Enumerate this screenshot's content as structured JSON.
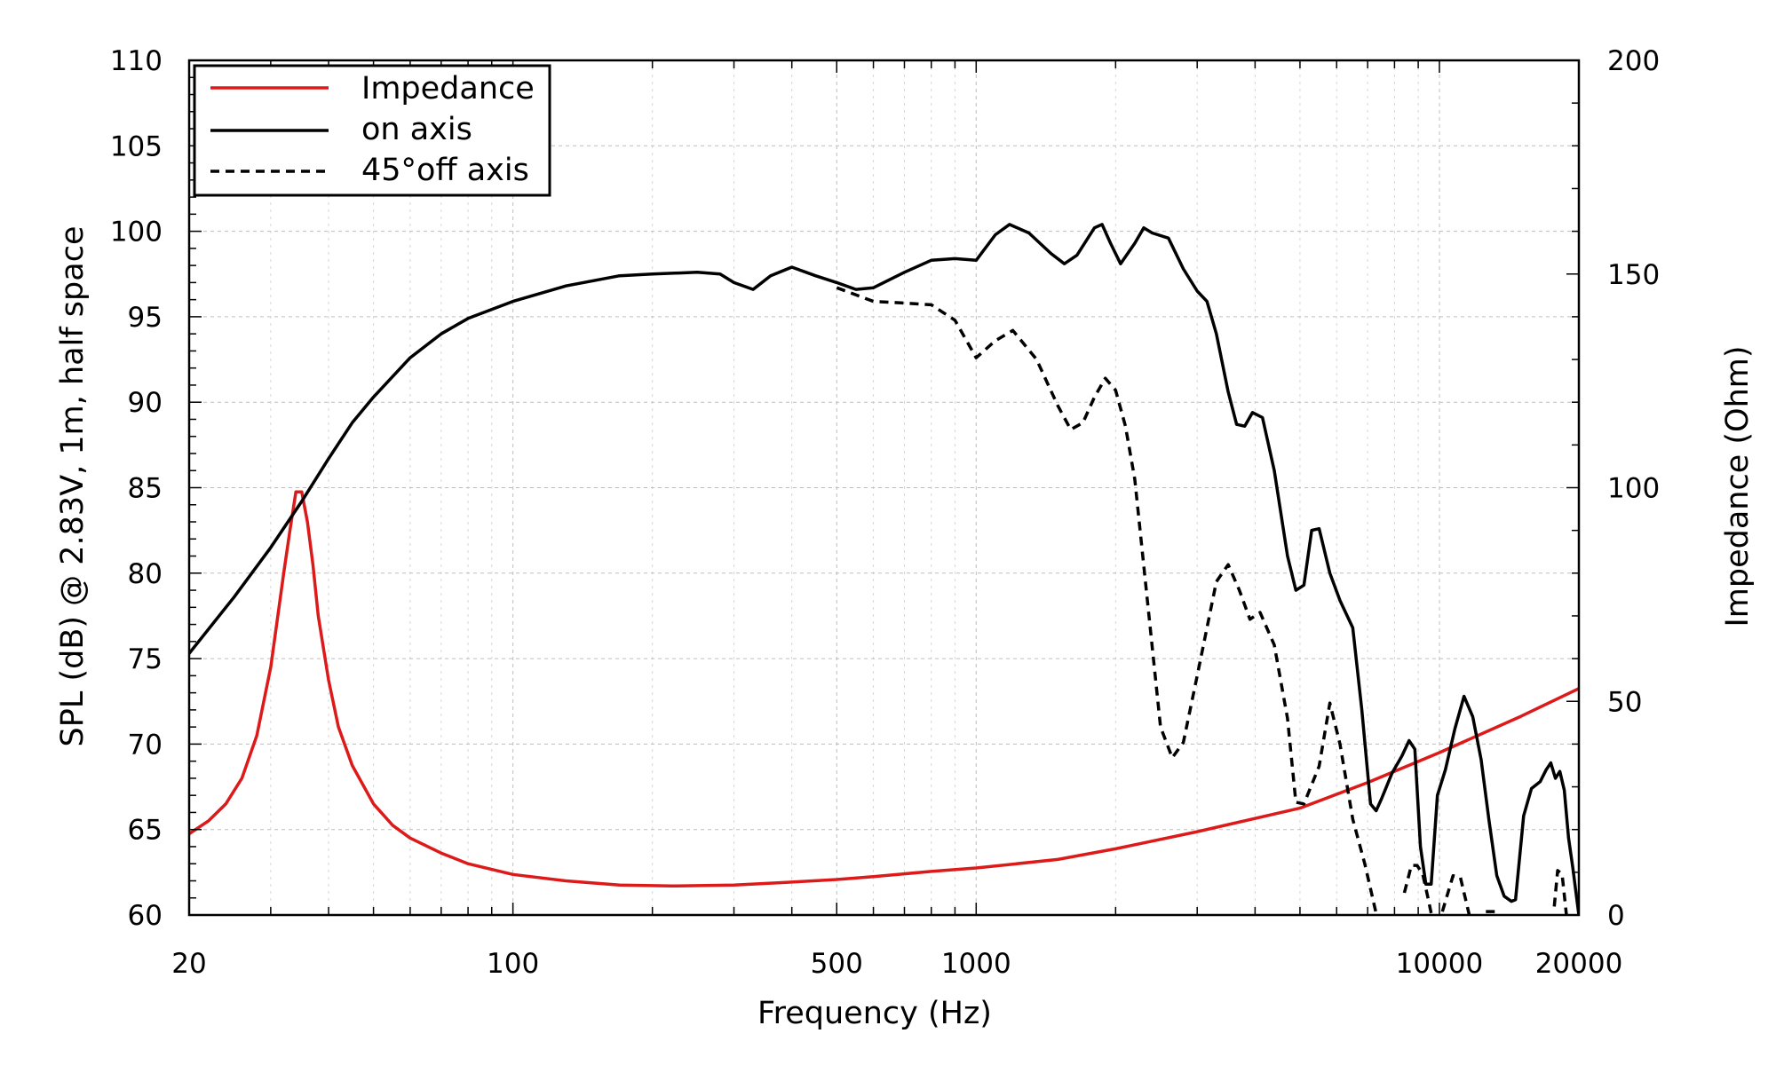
{
  "chart_data": {
    "type": "line",
    "title": "",
    "xlabel": "Frequency (Hz)",
    "ylabel_left": "SPL (dB) @ 2.83V, 1m, half space",
    "ylabel_right": "Impedance (Ohm)",
    "x_scale": "log",
    "xlim": [
      20,
      20000
    ],
    "ylim_left": [
      60,
      110
    ],
    "ylim_right": [
      0,
      200
    ],
    "x_ticks": [
      20,
      100,
      500,
      1000,
      10000,
      20000
    ],
    "x_tick_labels": [
      "20",
      "100",
      "500",
      "1000",
      "10000",
      "20000"
    ],
    "y_left_ticks": [
      60,
      65,
      70,
      75,
      80,
      85,
      90,
      95,
      100,
      105,
      110
    ],
    "y_left_tick_labels": [
      "60",
      "65",
      "70",
      "75",
      "80",
      "85",
      "90",
      "95",
      "100",
      "105",
      "110"
    ],
    "y_right_ticks": [
      0,
      50,
      100,
      150,
      200
    ],
    "y_right_tick_labels": [
      "0",
      "50",
      "100",
      "150",
      "200"
    ],
    "grid": true,
    "legend_position": "top-left",
    "series": [
      {
        "name": "Impedance",
        "axis": "right",
        "color": "#dd1a1a",
        "style": "solid",
        "points": [
          [
            20,
            19
          ],
          [
            22,
            22
          ],
          [
            24,
            26
          ],
          [
            26,
            32
          ],
          [
            28,
            42
          ],
          [
            30,
            58
          ],
          [
            32,
            80
          ],
          [
            33,
            90
          ],
          [
            34,
            99
          ],
          [
            35,
            99
          ],
          [
            36,
            92
          ],
          [
            37,
            82
          ],
          [
            38,
            70
          ],
          [
            40,
            55
          ],
          [
            42,
            44
          ],
          [
            45,
            35
          ],
          [
            50,
            26
          ],
          [
            55,
            21
          ],
          [
            60,
            18
          ],
          [
            70,
            14.5
          ],
          [
            80,
            12
          ],
          [
            100,
            9.5
          ],
          [
            130,
            8
          ],
          [
            170,
            7
          ],
          [
            220,
            6.8
          ],
          [
            300,
            7
          ],
          [
            400,
            7.7
          ],
          [
            500,
            8.3
          ],
          [
            600,
            9
          ],
          [
            800,
            10.2
          ],
          [
            1000,
            11
          ],
          [
            1500,
            13
          ],
          [
            2000,
            15.5
          ],
          [
            3000,
            19.5
          ],
          [
            5000,
            25
          ],
          [
            7000,
            31
          ],
          [
            10000,
            38
          ],
          [
            15000,
            46.5
          ],
          [
            20000,
            53
          ]
        ]
      },
      {
        "name": "on axis",
        "axis": "left",
        "color": "#000000",
        "style": "solid",
        "points": [
          [
            20,
            75.3
          ],
          [
            25,
            78.6
          ],
          [
            30,
            81.5
          ],
          [
            35,
            84.2
          ],
          [
            40,
            86.7
          ],
          [
            45,
            88.8
          ],
          [
            50,
            90.3
          ],
          [
            60,
            92.6
          ],
          [
            70,
            94.0
          ],
          [
            80,
            94.9
          ],
          [
            100,
            95.9
          ],
          [
            130,
            96.8
          ],
          [
            170,
            97.4
          ],
          [
            200,
            97.5
          ],
          [
            250,
            97.6
          ],
          [
            280,
            97.5
          ],
          [
            300,
            97.0
          ],
          [
            330,
            96.6
          ],
          [
            360,
            97.4
          ],
          [
            400,
            97.9
          ],
          [
            450,
            97.4
          ],
          [
            500,
            97.0
          ],
          [
            550,
            96.6
          ],
          [
            600,
            96.7
          ],
          [
            700,
            97.6
          ],
          [
            800,
            98.3
          ],
          [
            900,
            98.4
          ],
          [
            1000,
            98.3
          ],
          [
            1100,
            99.8
          ],
          [
            1180,
            100.4
          ],
          [
            1300,
            99.9
          ],
          [
            1450,
            98.7
          ],
          [
            1550,
            98.1
          ],
          [
            1650,
            98.6
          ],
          [
            1800,
            100.2
          ],
          [
            1870,
            100.4
          ],
          [
            1950,
            99.3
          ],
          [
            2050,
            98.1
          ],
          [
            2200,
            99.3
          ],
          [
            2300,
            100.2
          ],
          [
            2400,
            99.9
          ],
          [
            2600,
            99.6
          ],
          [
            2800,
            97.8
          ],
          [
            3000,
            96.5
          ],
          [
            3150,
            95.9
          ],
          [
            3300,
            94.0
          ],
          [
            3500,
            90.6
          ],
          [
            3650,
            88.7
          ],
          [
            3800,
            88.6
          ],
          [
            3950,
            89.4
          ],
          [
            4150,
            89.1
          ],
          [
            4400,
            86.0
          ],
          [
            4700,
            81.0
          ],
          [
            4900,
            79.0
          ],
          [
            5100,
            79.3
          ],
          [
            5300,
            82.5
          ],
          [
            5500,
            82.6
          ],
          [
            5800,
            80.0
          ],
          [
            6100,
            78.4
          ],
          [
            6500,
            76.8
          ],
          [
            6800,
            72.0
          ],
          [
            7100,
            66.5
          ],
          [
            7300,
            66.1
          ],
          [
            7500,
            66.8
          ],
          [
            7900,
            68.3
          ],
          [
            8300,
            69.3
          ],
          [
            8600,
            70.2
          ],
          [
            8850,
            69.7
          ],
          [
            9100,
            64.0
          ],
          [
            9350,
            61.8
          ],
          [
            9600,
            61.8
          ],
          [
            9900,
            67.0
          ],
          [
            10300,
            68.5
          ],
          [
            10800,
            70.9
          ],
          [
            11300,
            72.8
          ],
          [
            11800,
            71.6
          ],
          [
            12300,
            69.1
          ],
          [
            12800,
            65.5
          ],
          [
            13300,
            62.3
          ],
          [
            13800,
            61.1
          ],
          [
            14300,
            60.8
          ],
          [
            14600,
            60.9
          ],
          [
            15200,
            65.8
          ],
          [
            15800,
            67.4
          ],
          [
            16500,
            67.8
          ],
          [
            17000,
            68.5
          ],
          [
            17400,
            68.9
          ],
          [
            17800,
            68.0
          ],
          [
            18200,
            68.4
          ],
          [
            18600,
            67.3
          ],
          [
            19000,
            64.5
          ],
          [
            19400,
            62.8
          ],
          [
            20000,
            60.0
          ]
        ]
      },
      {
        "name": "45°off axis",
        "axis": "left",
        "color": "#000000",
        "style": "dashed",
        "points": [
          [
            500,
            96.7
          ],
          [
            600,
            95.9
          ],
          [
            700,
            95.8
          ],
          [
            800,
            95.7
          ],
          [
            900,
            94.8
          ],
          [
            1000,
            92.6
          ],
          [
            1100,
            93.6
          ],
          [
            1200,
            94.2
          ],
          [
            1350,
            92.5
          ],
          [
            1500,
            89.8
          ],
          [
            1600,
            88.4
          ],
          [
            1700,
            88.8
          ],
          [
            1800,
            90.3
          ],
          [
            1900,
            91.4
          ],
          [
            2000,
            90.7
          ],
          [
            2100,
            88.6
          ],
          [
            2200,
            85.5
          ],
          [
            2350,
            78.0
          ],
          [
            2500,
            71.0
          ],
          [
            2650,
            69.2
          ],
          [
            2800,
            70.1
          ],
          [
            3000,
            74.0
          ],
          [
            3300,
            79.5
          ],
          [
            3500,
            80.5
          ],
          [
            3700,
            79.0
          ],
          [
            3900,
            77.3
          ],
          [
            4100,
            77.7
          ],
          [
            4400,
            75.8
          ],
          [
            4700,
            71.5
          ],
          [
            4900,
            66.6
          ],
          [
            5100,
            66.5
          ],
          [
            5500,
            68.7
          ],
          [
            5800,
            72.4
          ],
          [
            6100,
            70.0
          ],
          [
            6500,
            65.6
          ],
          [
            6900,
            63.0
          ],
          [
            7300,
            60.1
          ],
          [
            7350,
            null
          ],
          [
            8300,
            null
          ],
          [
            8400,
            61.3
          ],
          [
            8700,
            62.9
          ],
          [
            8950,
            62.9
          ],
          [
            9200,
            62.4
          ],
          [
            9450,
            61.0
          ],
          [
            9600,
            60.1
          ],
          [
            9700,
            null
          ],
          [
            10000,
            null
          ],
          [
            10150,
            60.2
          ],
          [
            10700,
            62.3
          ],
          [
            11100,
            62.2
          ],
          [
            11600,
            60.0
          ],
          [
            11700,
            null
          ],
          [
            12500,
            null
          ],
          [
            12600,
            60.2
          ],
          [
            13200,
            60.2
          ],
          [
            13300,
            null
          ],
          [
            17600,
            null
          ],
          [
            17700,
            60.5
          ],
          [
            18000,
            62.6
          ],
          [
            18400,
            62.4
          ],
          [
            18800,
            60.0
          ]
        ]
      }
    ]
  }
}
